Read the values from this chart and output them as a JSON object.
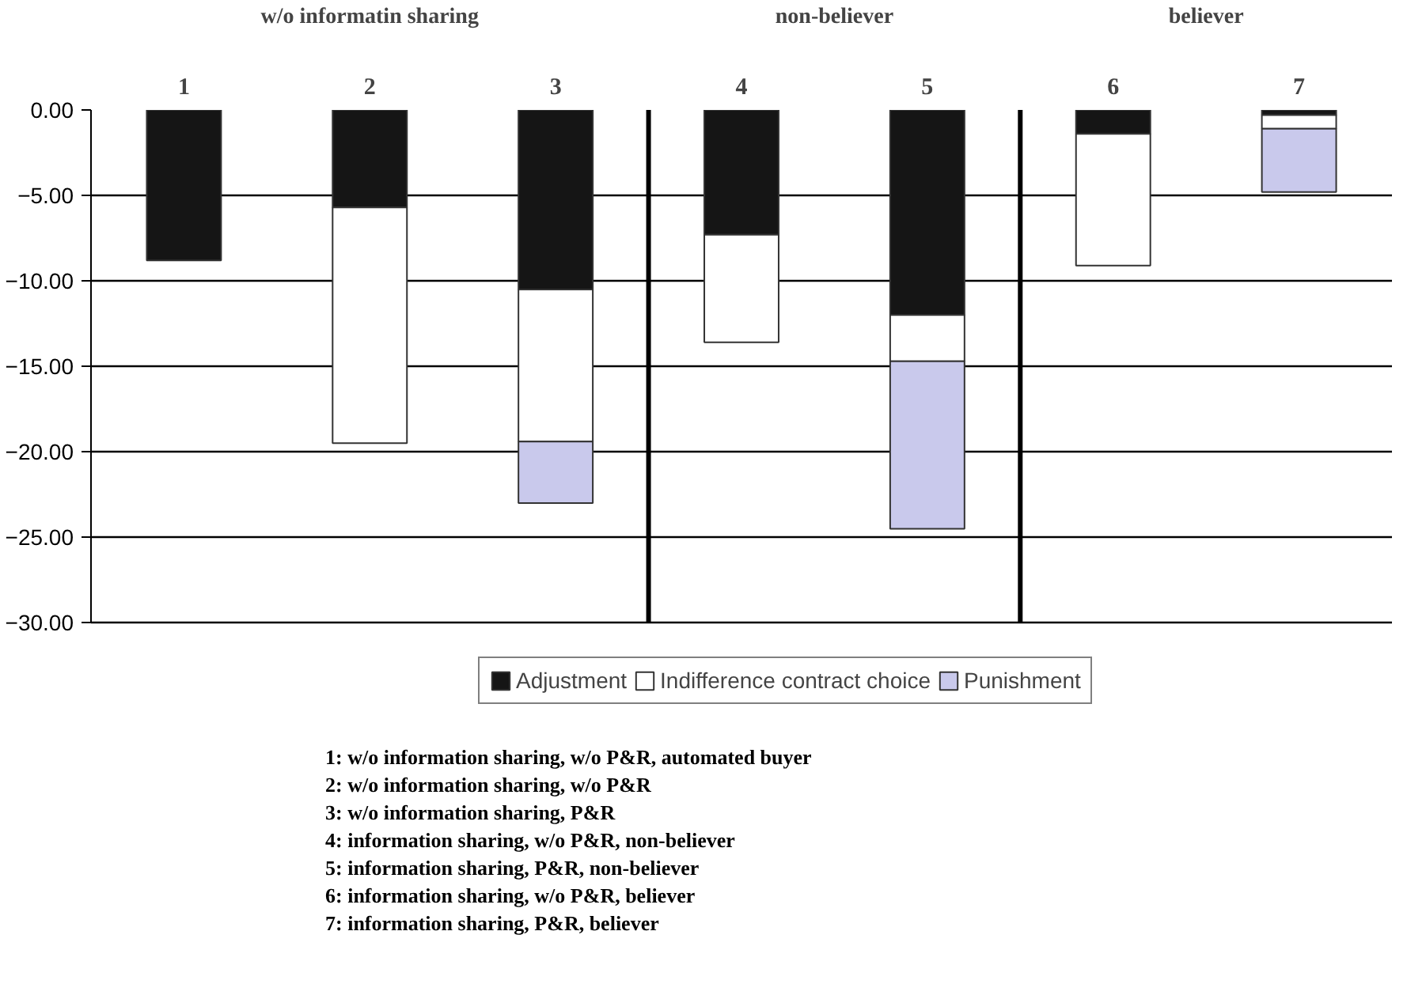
{
  "chart_data": {
    "type": "bar",
    "stacked": true,
    "categories": [
      "1",
      "2",
      "3",
      "4",
      "5",
      "6",
      "7"
    ],
    "series": [
      {
        "name": "Adjustment",
        "color": "#151515",
        "values": [
          -8.8,
          -5.7,
          -10.5,
          -7.3,
          -12.0,
          -1.4,
          -0.3
        ]
      },
      {
        "name": "Indifference contract choice",
        "color": "#ffffff",
        "values": [
          null,
          -13.8,
          -8.9,
          -6.3,
          -2.7,
          -7.7,
          -0.8
        ]
      },
      {
        "name": "Punishment",
        "color": "#c9c9ec",
        "values": [
          null,
          null,
          -3.6,
          null,
          -9.8,
          null,
          -3.7
        ]
      }
    ],
    "ylim": [
      -30,
      0
    ],
    "yticks": [
      {
        "value": 0,
        "label": "0.00"
      },
      {
        "value": -5,
        "label": "−5.00"
      },
      {
        "value": -10,
        "label": "−10.00"
      },
      {
        "value": -15,
        "label": "−15.00"
      },
      {
        "value": -20,
        "label": "−20.00"
      },
      {
        "value": -25,
        "label": "−25.00"
      },
      {
        "value": -30,
        "label": "−30.00"
      }
    ],
    "grid": "y",
    "legend": "bottom",
    "annotations": [
      "w/o informatin sharing",
      "non-believer",
      "believer",
      "1: w/o information sharing, w/o P&R, automated buyer",
      "2: w/o information sharing, w/o P&R",
      "3: w/o information sharing, P&R",
      "4: information sharing, w/o P&R, non-believer",
      "5: information sharing, P&R, non-believer",
      "6: information sharing, w/o P&R, believer",
      "7: information sharing, P&R, believer"
    ]
  }
}
